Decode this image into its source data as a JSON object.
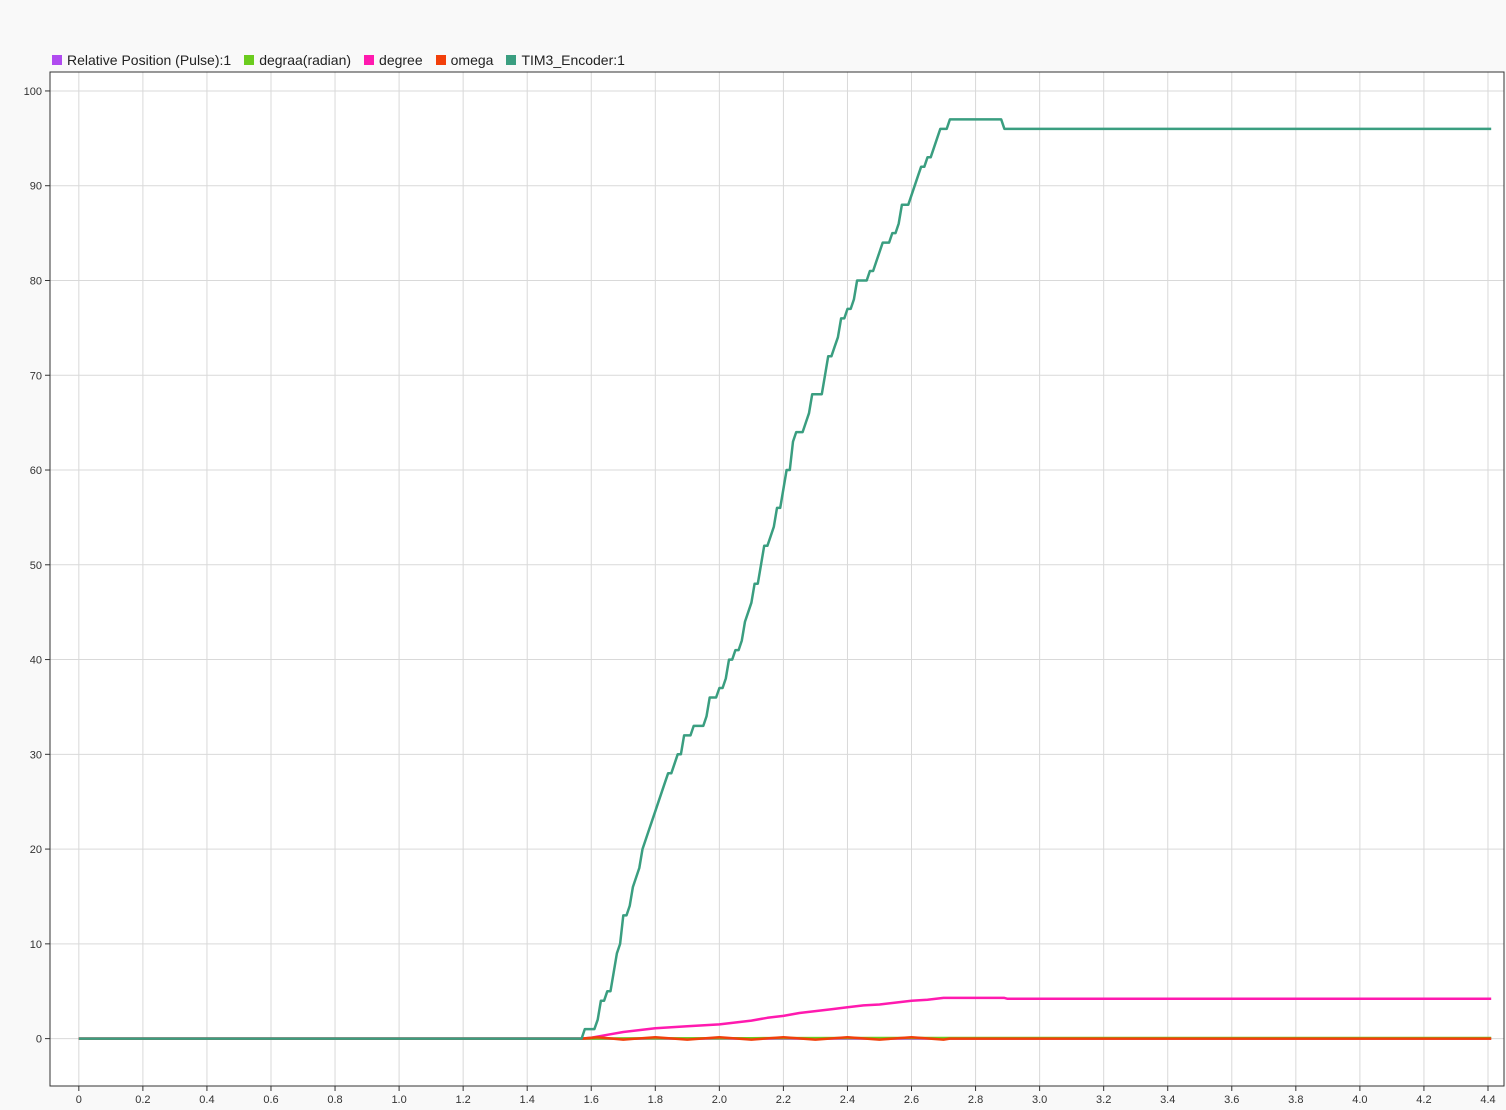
{
  "chart_data": {
    "type": "line",
    "title": "",
    "xlabel": "",
    "ylabel": "",
    "xlim": [
      -0.09,
      4.45
    ],
    "ylim": [
      -5,
      102
    ],
    "xticks": [
      "0",
      "0.2",
      "0.4",
      "0.6",
      "0.8",
      "1.0",
      "1.2",
      "1.4",
      "1.6",
      "1.8",
      "2.0",
      "2.2",
      "2.4",
      "2.6",
      "2.8",
      "3.0",
      "3.2",
      "3.4",
      "3.6",
      "3.8",
      "4.0",
      "4.2",
      "4.4"
    ],
    "yticks": [
      "0",
      "10",
      "20",
      "30",
      "40",
      "50",
      "60",
      "70",
      "80",
      "90",
      "100"
    ],
    "grid": true,
    "legend_position": "top-left",
    "series": [
      {
        "name": "Relative Position (Pulse):1",
        "color": "#b04bf0",
        "points": [
          [
            0,
            0
          ],
          [
            4.41,
            0
          ]
        ]
      },
      {
        "name": "degraa(radian)",
        "color": "#6bcc1e",
        "points": [
          [
            0,
            0
          ],
          [
            1.57,
            0
          ],
          [
            1.75,
            0.02
          ],
          [
            2.1,
            0.04
          ],
          [
            2.5,
            0.06
          ],
          [
            2.72,
            0.07
          ],
          [
            2.89,
            0.07
          ],
          [
            4.41,
            0.07
          ]
        ]
      },
      {
        "name": "degree",
        "color": "#ff1aaf",
        "points": [
          [
            0,
            0
          ],
          [
            1.57,
            0
          ],
          [
            1.6,
            0.1
          ],
          [
            1.65,
            0.4
          ],
          [
            1.7,
            0.7
          ],
          [
            1.75,
            0.9
          ],
          [
            1.8,
            1.1
          ],
          [
            1.85,
            1.2
          ],
          [
            1.9,
            1.3
          ],
          [
            2.0,
            1.5
          ],
          [
            2.05,
            1.7
          ],
          [
            2.1,
            1.9
          ],
          [
            2.15,
            2.2
          ],
          [
            2.2,
            2.4
          ],
          [
            2.25,
            2.7
          ],
          [
            2.3,
            2.9
          ],
          [
            2.35,
            3.1
          ],
          [
            2.4,
            3.3
          ],
          [
            2.45,
            3.5
          ],
          [
            2.5,
            3.6
          ],
          [
            2.55,
            3.8
          ],
          [
            2.6,
            4.0
          ],
          [
            2.65,
            4.1
          ],
          [
            2.7,
            4.3
          ],
          [
            2.89,
            4.3
          ],
          [
            2.9,
            4.2
          ],
          [
            4.41,
            4.2
          ]
        ]
      },
      {
        "name": "omega",
        "color": "#f23f0a",
        "points": [
          [
            0,
            0
          ],
          [
            1.57,
            0
          ],
          [
            1.62,
            0.15
          ],
          [
            1.7,
            -0.1
          ],
          [
            1.8,
            0.15
          ],
          [
            1.9,
            -0.1
          ],
          [
            2.0,
            0.15
          ],
          [
            2.1,
            -0.1
          ],
          [
            2.2,
            0.15
          ],
          [
            2.3,
            -0.1
          ],
          [
            2.4,
            0.15
          ],
          [
            2.5,
            -0.1
          ],
          [
            2.6,
            0.15
          ],
          [
            2.7,
            -0.1
          ],
          [
            2.72,
            0
          ],
          [
            4.41,
            0
          ]
        ]
      },
      {
        "name": "TIM3_Encoder:1",
        "color": "#3a9e80",
        "points": [
          [
            0,
            0
          ],
          [
            1.57,
            0
          ],
          [
            1.58,
            1
          ],
          [
            1.61,
            1
          ],
          [
            1.62,
            2
          ],
          [
            1.63,
            4
          ],
          [
            1.64,
            4
          ],
          [
            1.65,
            5
          ],
          [
            1.66,
            5
          ],
          [
            1.67,
            7
          ],
          [
            1.68,
            9
          ],
          [
            1.69,
            10
          ],
          [
            1.7,
            13
          ],
          [
            1.71,
            13
          ],
          [
            1.72,
            14
          ],
          [
            1.73,
            16
          ],
          [
            1.74,
            17
          ],
          [
            1.75,
            18
          ],
          [
            1.76,
            20
          ],
          [
            1.77,
            21
          ],
          [
            1.78,
            22
          ],
          [
            1.79,
            23
          ],
          [
            1.8,
            24
          ],
          [
            1.81,
            25
          ],
          [
            1.82,
            26
          ],
          [
            1.83,
            27
          ],
          [
            1.84,
            28
          ],
          [
            1.85,
            28
          ],
          [
            1.86,
            29
          ],
          [
            1.87,
            30
          ],
          [
            1.88,
            30
          ],
          [
            1.89,
            32
          ],
          [
            1.91,
            32
          ],
          [
            1.92,
            33
          ],
          [
            1.95,
            33
          ],
          [
            1.96,
            34
          ],
          [
            1.97,
            36
          ],
          [
            1.99,
            36
          ],
          [
            2.0,
            37
          ],
          [
            2.01,
            37
          ],
          [
            2.02,
            38
          ],
          [
            2.03,
            40
          ],
          [
            2.04,
            40
          ],
          [
            2.05,
            41
          ],
          [
            2.06,
            41
          ],
          [
            2.07,
            42
          ],
          [
            2.08,
            44
          ],
          [
            2.09,
            45
          ],
          [
            2.1,
            46
          ],
          [
            2.11,
            48
          ],
          [
            2.12,
            48
          ],
          [
            2.13,
            50
          ],
          [
            2.14,
            52
          ],
          [
            2.15,
            52
          ],
          [
            2.16,
            53
          ],
          [
            2.17,
            54
          ],
          [
            2.18,
            56
          ],
          [
            2.19,
            56
          ],
          [
            2.2,
            58
          ],
          [
            2.21,
            60
          ],
          [
            2.22,
            60
          ],
          [
            2.23,
            63
          ],
          [
            2.24,
            64
          ],
          [
            2.26,
            64
          ],
          [
            2.27,
            65
          ],
          [
            2.28,
            66
          ],
          [
            2.29,
            68
          ],
          [
            2.32,
            68
          ],
          [
            2.33,
            70
          ],
          [
            2.34,
            72
          ],
          [
            2.35,
            72
          ],
          [
            2.36,
            73
          ],
          [
            2.37,
            74
          ],
          [
            2.38,
            76
          ],
          [
            2.39,
            76
          ],
          [
            2.4,
            77
          ],
          [
            2.41,
            77
          ],
          [
            2.42,
            78
          ],
          [
            2.43,
            80
          ],
          [
            2.46,
            80
          ],
          [
            2.47,
            81
          ],
          [
            2.48,
            81
          ],
          [
            2.49,
            82
          ],
          [
            2.5,
            83
          ],
          [
            2.51,
            84
          ],
          [
            2.53,
            84
          ],
          [
            2.54,
            85
          ],
          [
            2.55,
            85
          ],
          [
            2.56,
            86
          ],
          [
            2.57,
            88
          ],
          [
            2.59,
            88
          ],
          [
            2.6,
            89
          ],
          [
            2.61,
            90
          ],
          [
            2.62,
            91
          ],
          [
            2.63,
            92
          ],
          [
            2.64,
            92
          ],
          [
            2.65,
            93
          ],
          [
            2.66,
            93
          ],
          [
            2.67,
            94
          ],
          [
            2.68,
            95
          ],
          [
            2.69,
            96
          ],
          [
            2.71,
            96
          ],
          [
            2.72,
            97
          ],
          [
            2.88,
            97
          ],
          [
            2.89,
            96
          ],
          [
            4.41,
            96
          ]
        ]
      }
    ]
  }
}
